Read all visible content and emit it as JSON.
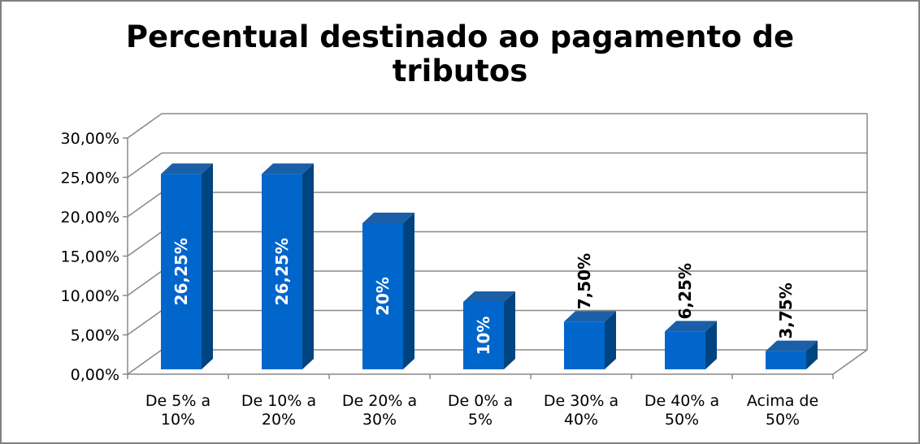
{
  "chart_data": {
    "type": "bar",
    "title_lines": [
      "Percentual destinado ao pagamento de",
      "tributos"
    ],
    "categories": [
      [
        "De 5% a",
        "10%"
      ],
      [
        "De 10% a",
        "20%"
      ],
      [
        "De 20% a",
        "30%"
      ],
      [
        "De 0% a",
        "5%"
      ],
      [
        "De 30% a",
        "40%"
      ],
      [
        "De 40% a",
        "50%"
      ],
      [
        "Acima de",
        "50%"
      ]
    ],
    "values": [
      26.25,
      26.25,
      20,
      10,
      7.5,
      6.25,
      3.75
    ],
    "data_labels": [
      "26,25%",
      "26,25%",
      "20%",
      "10%",
      "7,50%",
      "6,25%",
      "3,75%"
    ],
    "label_inside": [
      true,
      true,
      true,
      true,
      false,
      false,
      false
    ],
    "y_ticks": [
      "0,00%",
      "5,00%",
      "10,00%",
      "15,00%",
      "20,00%",
      "25,00%",
      "30,00%"
    ],
    "ylim": [
      0,
      30
    ],
    "grid": true,
    "legend": "none",
    "colors": {
      "bar_front": "#0066cc",
      "bar_side": "#00447f",
      "bar_top": "#1a5fa8",
      "grid": "#888888",
      "border": "#808080"
    }
  }
}
